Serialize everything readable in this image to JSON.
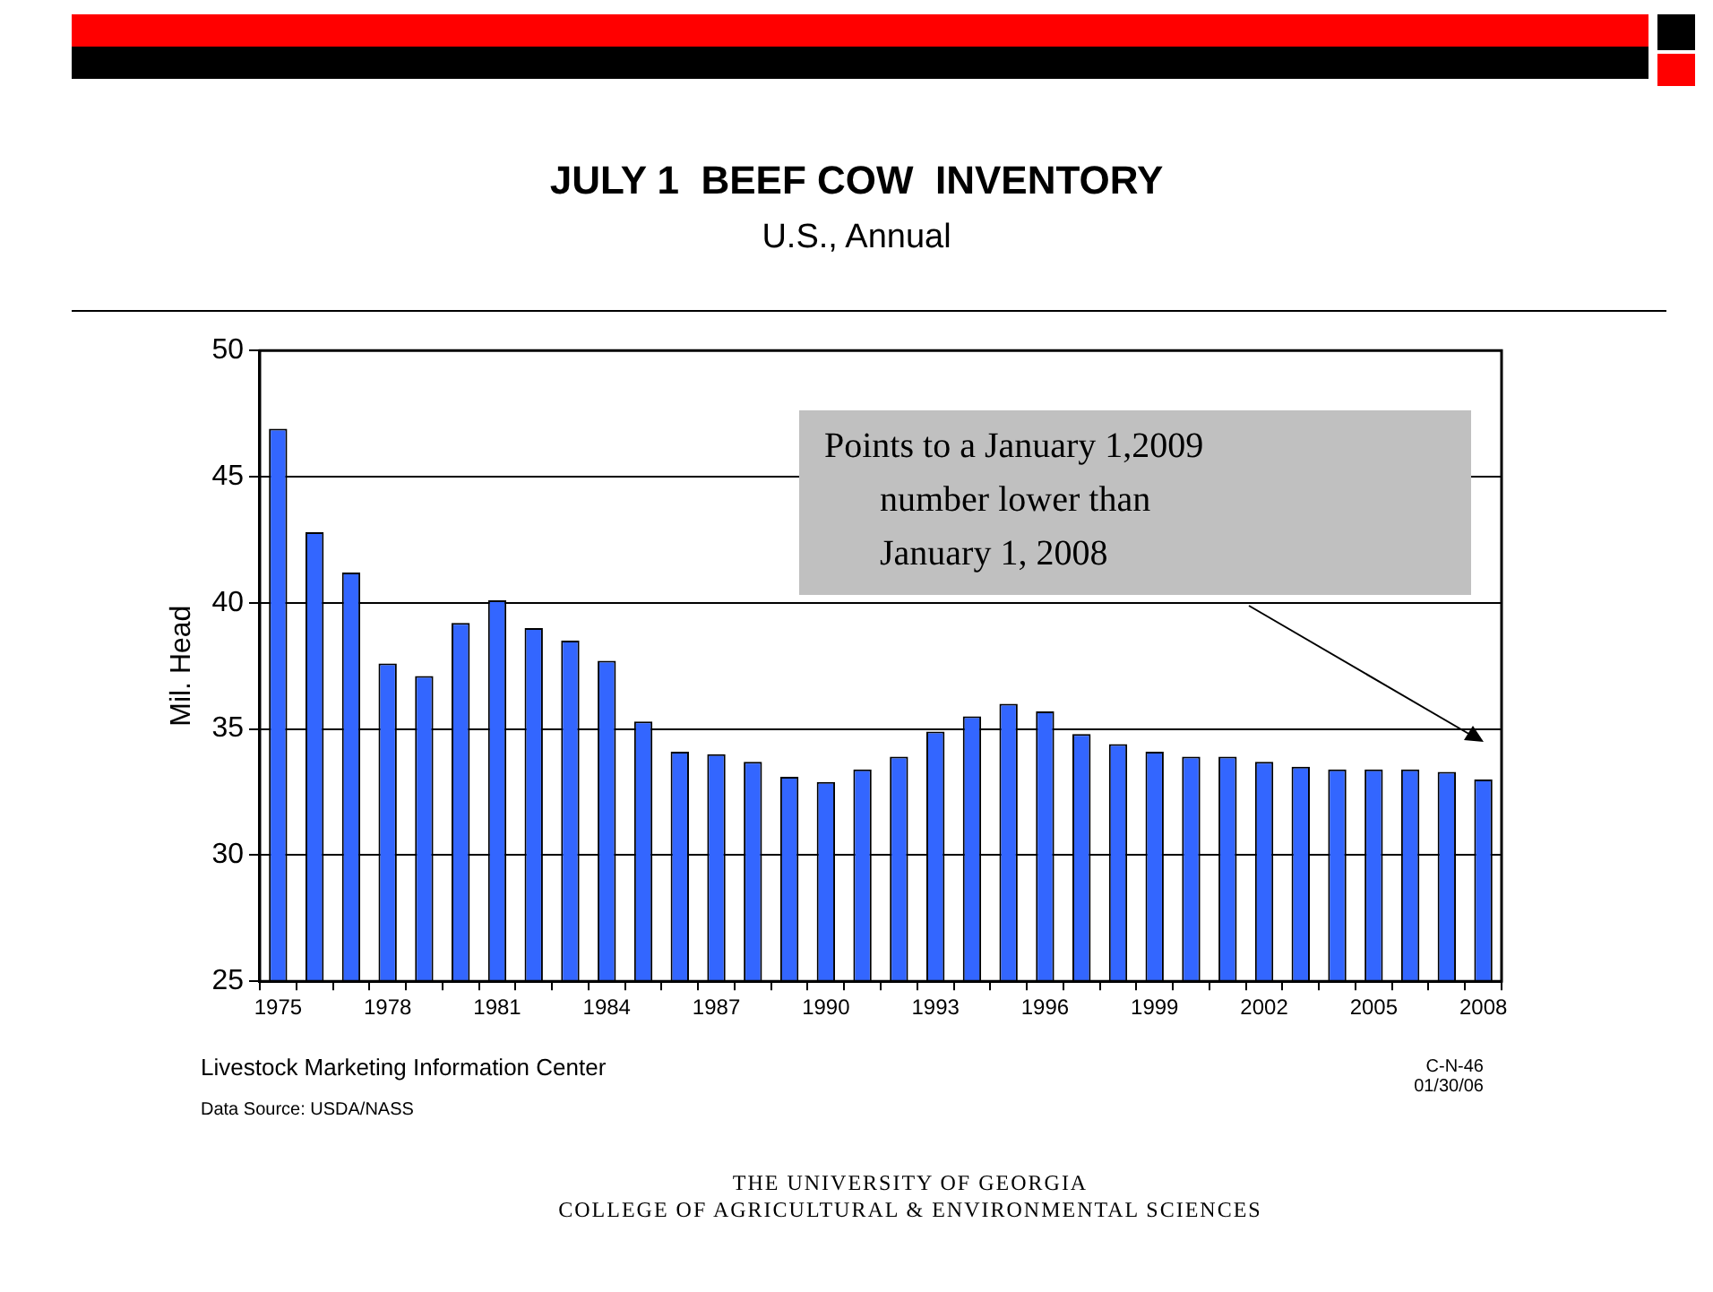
{
  "chart_data": {
    "type": "bar",
    "title": "JULY 1  BEEF COW  INVENTORY",
    "subtitle": "U.S., Annual",
    "ylabel": "Mil. Head",
    "categories": [
      "1975",
      null,
      null,
      "1978",
      null,
      null,
      "1981",
      null,
      null,
      "1984",
      null,
      null,
      "1987",
      null,
      null,
      "1990",
      null,
      null,
      "1993",
      null,
      null,
      "1996",
      null,
      null,
      "1999",
      null,
      null,
      "2002",
      null,
      null,
      "2005",
      null,
      null,
      "2008"
    ],
    "values": [
      46.9,
      42.8,
      41.2,
      37.6,
      37.1,
      39.2,
      40.1,
      39.0,
      38.5,
      37.7,
      35.3,
      34.1,
      34.0,
      33.7,
      33.1,
      32.9,
      33.4,
      33.9,
      34.9,
      35.5,
      36.0,
      35.7,
      34.8,
      34.4,
      34.1,
      33.9,
      33.9,
      33.7,
      33.5,
      33.4,
      33.4,
      33.4,
      33.3,
      33.0
    ],
    "color": "#3366ff",
    "ylim": [
      25,
      50
    ],
    "yticks": [
      25,
      30,
      35,
      40,
      45,
      50
    ],
    "grid": "y",
    "annotations": [
      "Points to a January 1,2009\nnumber lower than\nJanuary 1, 2008",
      "Livestock Marketing Information Center",
      "Data Source: USDA/NASS",
      "C-N-46\n01/30/06",
      "THE UNIVERSITY OF GEORGIA\nCOLLEGE OF AGRICULTURAL & ENVIRONMENTAL SCIENCES"
    ]
  }
}
